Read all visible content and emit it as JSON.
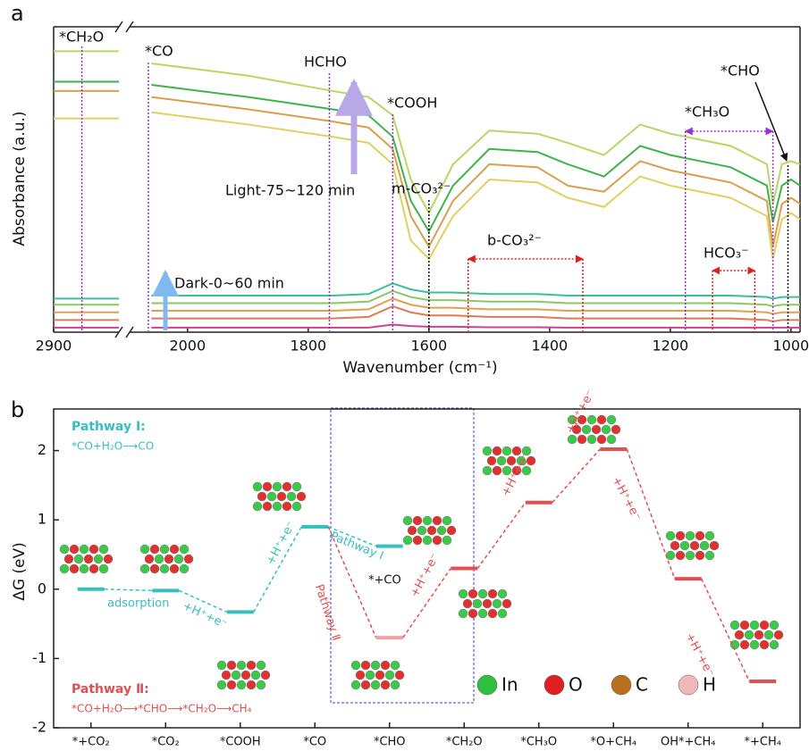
{
  "chart_data": [
    {
      "type": "line",
      "panel": "a",
      "x_label": "Wavenumber (cm⁻¹)",
      "y_label": "Absorbance (a.u.)",
      "xlim_left": [
        2900,
        2810
      ],
      "xlim": [
        2096,
        985
      ],
      "ylim": [
        0,
        100
      ],
      "xticks": [
        2900,
        2000,
        1800,
        1600,
        1400,
        1200,
        1000
      ],
      "x_left": [
        2900,
        2810
      ],
      "x": [
        2060,
        1900,
        1760,
        1700,
        1660,
        1630,
        1600,
        1560,
        1500,
        1420,
        1370,
        1310,
        1250,
        1200,
        1100,
        1040,
        1030,
        1015,
        1000,
        985
      ],
      "series": [
        {
          "color": "#b5d960",
          "values_left": [
            92,
            92
          ],
          "values": [
            88,
            84,
            79,
            77,
            71,
            50,
            39,
            55,
            66,
            65,
            62,
            58,
            68,
            65,
            61,
            55,
            42,
            55,
            56,
            55
          ]
        },
        {
          "color": "#3cb44b",
          "values_left": [
            82,
            82
          ],
          "values": [
            81,
            77,
            73,
            71,
            64,
            43,
            33,
            48,
            60,
            59,
            55,
            51,
            61,
            58,
            54,
            48,
            36,
            48,
            50,
            48
          ]
        },
        {
          "color": "#d8a049",
          "values_left": [
            79,
            79
          ],
          "values": [
            77,
            73,
            69,
            67,
            60,
            38,
            28,
            43,
            55,
            54,
            48,
            46,
            56,
            53,
            49,
            43,
            28,
            42,
            44,
            42
          ]
        },
        {
          "color": "#e0d060",
          "values_left": [
            70,
            70
          ],
          "values": [
            72,
            68,
            64,
            62,
            55,
            30,
            24,
            38,
            50,
            49,
            44,
            41,
            51,
            48,
            44,
            38,
            24,
            37,
            39,
            37
          ]
        },
        {
          "color": "#3bbf9a",
          "values_left": [
            11,
            11
          ],
          "values": [
            12,
            12,
            12,
            12.5,
            16,
            14,
            13,
            13,
            12.5,
            12.5,
            12,
            12,
            12,
            12,
            12,
            11.5,
            11,
            11.5,
            11.5,
            11.5
          ]
        },
        {
          "color": "#8cc860",
          "values_left": [
            9,
            9
          ],
          "values": [
            9.5,
            9.5,
            9.5,
            10,
            13.5,
            11.5,
            10.5,
            10.5,
            10,
            10,
            9.5,
            9.5,
            9.5,
            9.5,
            9.5,
            9,
            8.5,
            9,
            9,
            9
          ]
        },
        {
          "color": "#e0a050",
          "values_left": [
            6.5,
            6.5
          ],
          "values": [
            7,
            7,
            7,
            7.5,
            11,
            9,
            8,
            8,
            7.5,
            7.5,
            7,
            7,
            7,
            7,
            7,
            6.5,
            6,
            6.5,
            6.5,
            6.5
          ]
        },
        {
          "color": "#e07a50",
          "values_left": [
            4,
            4
          ],
          "values": [
            4.5,
            4.5,
            4.5,
            5,
            8.5,
            6.5,
            5.5,
            5.5,
            5,
            5,
            4.5,
            4.5,
            4.5,
            4.5,
            4.5,
            4,
            3.5,
            4,
            4,
            4
          ]
        },
        {
          "color": "#d04090",
          "values_left": [
            1.5,
            1.5
          ],
          "values": [
            1.5,
            1.5,
            1.5,
            1.5,
            2.5,
            2,
            1.8,
            1.8,
            1.6,
            1.6,
            1.5,
            1.5,
            1.5,
            1.5,
            1.5,
            1.5,
            1.5,
            1.5,
            1.5,
            1.5
          ]
        }
      ],
      "markers": [
        {
          "label": "*CH₂O",
          "x": 2861,
          "color": "#9b30d0"
        },
        {
          "label": "*CO",
          "x": 2065,
          "color": "#9b30d0"
        },
        {
          "label": "HCHO",
          "x": 1765,
          "color": "#9b30d0"
        },
        {
          "label": "*COOH",
          "x": 1660,
          "color": "#9b30d0"
        },
        {
          "label": "m-CO₃²⁻",
          "x": 1600,
          "color": "#111111"
        },
        {
          "label": "*CHO",
          "x": 1005,
          "color": "#111111"
        }
      ],
      "ranges": [
        {
          "label": "b-CO₃²⁻",
          "x": [
            1535,
            1345
          ],
          "color": "#e02020"
        },
        {
          "label": "HCO₃⁻",
          "x": [
            1130,
            1060
          ],
          "color": "#e02020"
        },
        {
          "label": "*CH₃O",
          "x": [
            1175,
            1030
          ],
          "color": "#9b30d0"
        }
      ],
      "annotations": [
        "Light-75~120 min",
        "Dark-0~60 min"
      ]
    },
    {
      "type": "energy",
      "panel": "b",
      "y_label": "ΔG (eV)",
      "categories": [
        "*+CO₂",
        "*CO₂",
        "*COOH",
        "*CO",
        "*CHO",
        "*CH₂O",
        "*CH₃O",
        "*O+CH₄",
        "OH*+CH₄",
        "*+CH₄"
      ],
      "ylim": [
        -2,
        2.6
      ],
      "yticks": [
        -2,
        -1,
        0,
        1,
        2
      ],
      "series": [
        {
          "color": "#35bfc0",
          "values": [
            0,
            -0.02,
            -0.33,
            0.9,
            0.62,
            null,
            null,
            null,
            null,
            null
          ]
        },
        {
          "color": "#e05050",
          "values": [
            null,
            null,
            null,
            null,
            -0.7,
            0.3,
            1.25,
            2.02,
            0.15,
            -1.33
          ]
        }
      ],
      "step_labels": [
        "adsorption",
        "+H⁺+e⁻",
        "+H⁺+e⁻",
        "Pathway Ⅰ",
        "Pathway Ⅱ",
        "*+CO",
        "+H⁺+e⁻",
        "+H⁺+e⁻",
        "+H⁺+e⁻",
        "+H⁺+e⁻",
        "+H⁺+e⁻"
      ],
      "pathways": [
        {
          "title": "Pathway Ⅰ:",
          "reaction": "*CO+H₂O⟶CO",
          "color": "#35bfc0"
        },
        {
          "title": "Pathway Ⅱ:",
          "reaction": "*CO+H₂O⟶*CHO⟶*CH₂O⟶CH₄",
          "color": "#e05050"
        }
      ],
      "legend": [
        {
          "label": "In",
          "color": "#2fc040"
        },
        {
          "label": "O",
          "color": "#e02020"
        },
        {
          "label": "C",
          "color": "#b87020"
        },
        {
          "label": "H",
          "color": "#f0b8b8"
        }
      ]
    }
  ]
}
